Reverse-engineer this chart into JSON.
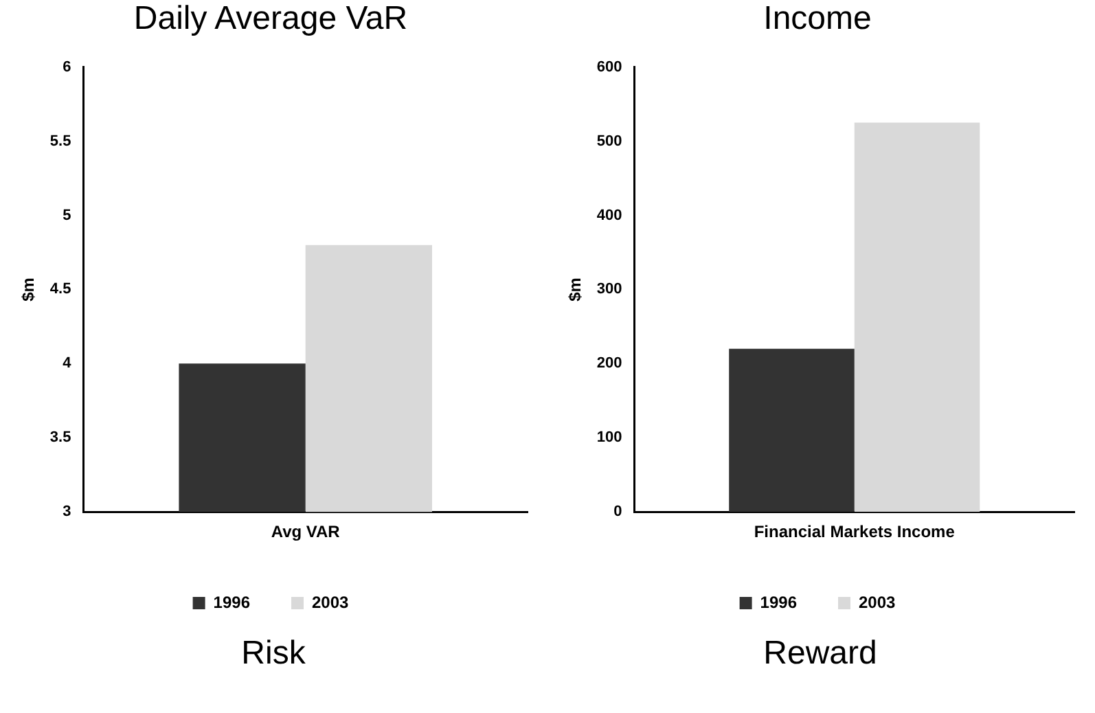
{
  "chart_data": [
    {
      "type": "bar",
      "title": "Daily Average VaR",
      "ylabel": "$m",
      "categories": [
        "Avg VAR"
      ],
      "series": [
        {
          "name": "1996",
          "color": "#333333",
          "values": [
            4.0
          ]
        },
        {
          "name": "2003",
          "color": "#d9d9d9",
          "values": [
            4.8
          ]
        }
      ],
      "ylim": [
        3,
        6
      ],
      "yticks": [
        3,
        3.5,
        4,
        4.5,
        5,
        5.5,
        6
      ],
      "grid": false,
      "legend": "bottom",
      "annotations": [
        "Risk"
      ]
    },
    {
      "type": "bar",
      "title": "Income",
      "ylabel": "$m",
      "categories": [
        "Financial Markets Income"
      ],
      "series": [
        {
          "name": "1996",
          "color": "#333333",
          "values": [
            220
          ]
        },
        {
          "name": "2003",
          "color": "#d9d9d9",
          "values": [
            525
          ]
        }
      ],
      "ylim": [
        0,
        600
      ],
      "yticks": [
        0,
        100,
        200,
        300,
        400,
        500,
        600
      ],
      "grid": false,
      "legend": "bottom",
      "annotations": [
        "Reward"
      ]
    }
  ]
}
